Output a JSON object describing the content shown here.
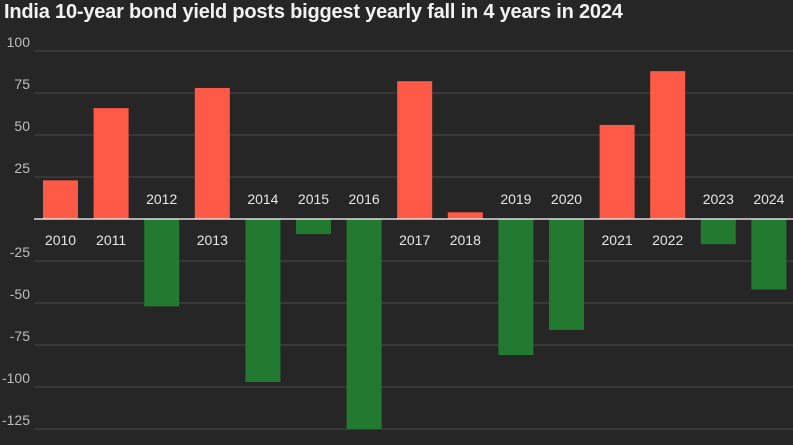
{
  "title": "India 10-year bond yield posts biggest yearly fall in 4 years in 2024",
  "colors": {
    "background": "#262626",
    "positive": "#ff5a47",
    "negative": "#217a30",
    "grid": "#4a4a4a",
    "zero_line": "#ffffff"
  },
  "chart_data": {
    "type": "bar",
    "title": "India 10-year bond yield posts biggest yearly fall in 4 years in 2024",
    "xlabel": "",
    "ylabel": "",
    "ylim": [
      -135,
      110
    ],
    "yticks": [
      100,
      75,
      50,
      25,
      -25,
      -50,
      -75,
      -100,
      -125
    ],
    "ytick_labels": [
      "100",
      "75",
      "50",
      "25",
      "-25",
      "-50",
      "-75",
      "-100",
      "-125"
    ],
    "grid": true,
    "legend": "none",
    "categories": [
      "2010",
      "2011",
      "2012",
      "2013",
      "2014",
      "2015",
      "2016",
      "2017",
      "2018",
      "2019",
      "2020",
      "2021",
      "2022",
      "2023",
      "2024"
    ],
    "values": [
      23,
      66,
      -52,
      78,
      -97,
      -9,
      -125,
      82,
      4,
      -81,
      -66,
      56,
      88,
      -15,
      -42
    ]
  }
}
